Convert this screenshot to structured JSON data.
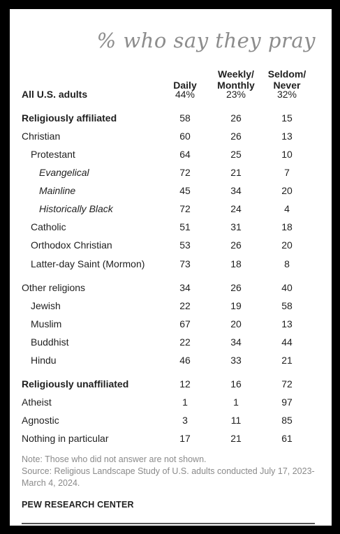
{
  "chart_data": {
    "type": "table",
    "title": "% who say they pray",
    "columns": [
      "Daily",
      "Weekly/\nMonthly",
      "Seldom/\nNever"
    ],
    "rows": [
      {
        "label": "All U.S. adults",
        "style": "bold",
        "indent": 0,
        "values": [
          "44%",
          "23%",
          "32%"
        ]
      },
      {
        "label": "Religiously affiliated",
        "style": "bold",
        "indent": 0,
        "values": [
          "58",
          "26",
          "15"
        ]
      },
      {
        "label": "Christian",
        "style": "normal",
        "indent": 0,
        "values": [
          "60",
          "26",
          "13"
        ]
      },
      {
        "label": "Protestant",
        "style": "normal",
        "indent": 1,
        "values": [
          "64",
          "25",
          "10"
        ]
      },
      {
        "label": "Evangelical",
        "style": "italic",
        "indent": 2,
        "values": [
          "72",
          "21",
          "7"
        ]
      },
      {
        "label": "Mainline",
        "style": "italic",
        "indent": 2,
        "values": [
          "45",
          "34",
          "20"
        ]
      },
      {
        "label": "Historically Black",
        "style": "italic",
        "indent": 2,
        "values": [
          "72",
          "24",
          "4"
        ]
      },
      {
        "label": "Catholic",
        "style": "normal",
        "indent": 1,
        "values": [
          "51",
          "31",
          "18"
        ]
      },
      {
        "label": "Orthodox Christian",
        "style": "normal",
        "indent": 1,
        "values": [
          "53",
          "26",
          "20"
        ]
      },
      {
        "label": "Latter-day Saint (Mormon)",
        "style": "normal",
        "indent": 1,
        "values": [
          "73",
          "18",
          "8"
        ]
      },
      {
        "label": "Other religions",
        "style": "normal",
        "indent": 0,
        "values": [
          "34",
          "26",
          "40"
        ]
      },
      {
        "label": "Jewish",
        "style": "normal",
        "indent": 1,
        "values": [
          "22",
          "19",
          "58"
        ]
      },
      {
        "label": "Muslim",
        "style": "normal",
        "indent": 1,
        "values": [
          "67",
          "20",
          "13"
        ]
      },
      {
        "label": "Buddhist",
        "style": "normal",
        "indent": 1,
        "values": [
          "22",
          "34",
          "44"
        ]
      },
      {
        "label": "Hindu",
        "style": "normal",
        "indent": 1,
        "values": [
          "46",
          "33",
          "21"
        ]
      },
      {
        "label": "Religiously unaffiliated",
        "style": "bold",
        "indent": 0,
        "values": [
          "12",
          "16",
          "72"
        ]
      },
      {
        "label": "Atheist",
        "style": "normal",
        "indent": 0,
        "values": [
          "1",
          "1",
          "97"
        ]
      },
      {
        "label": "Agnostic",
        "style": "normal",
        "indent": 0,
        "values": [
          "3",
          "11",
          "85"
        ]
      },
      {
        "label": "Nothing in particular",
        "style": "normal",
        "indent": 0,
        "values": [
          "17",
          "21",
          "61"
        ]
      }
    ]
  },
  "notes": {
    "note": "Note: Those who did not answer are not shown.",
    "source_text": "Source: Religious Landscape Study of U.S. adults conducted July 17, 2023-March 4, 2024.",
    "organization": "PEW RESEARCH CENTER"
  },
  "colors": {
    "title": "#8c8c8c",
    "text": "#1f1f1f",
    "note": "#8a8a8a",
    "frame": "#000000"
  }
}
